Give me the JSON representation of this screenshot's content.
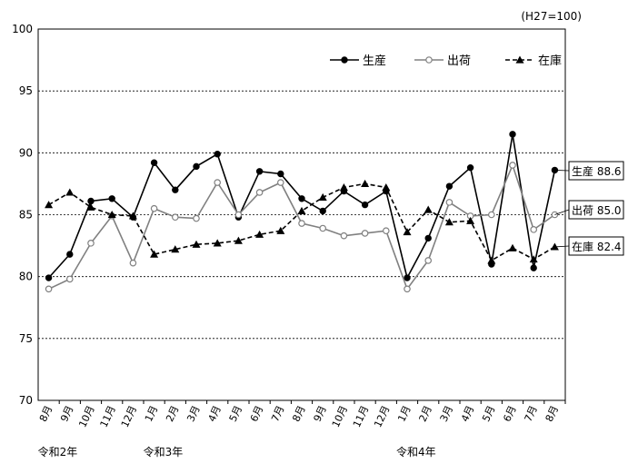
{
  "chart_data": {
    "type": "line",
    "unit_note": "(H27=100)",
    "ylim": [
      70,
      100
    ],
    "yticks": [
      70,
      75,
      80,
      85,
      90,
      95,
      100
    ],
    "grid": true,
    "legend_position": "top-right",
    "x": [
      "8月",
      "9月",
      "10月",
      "11月",
      "12月",
      "1月",
      "2月",
      "3月",
      "4月",
      "5月",
      "6月",
      "7月",
      "8月",
      "9月",
      "10月",
      "11月",
      "12月",
      "1月",
      "2月",
      "3月",
      "4月",
      "5月",
      "6月",
      "7月",
      "8月"
    ],
    "year_labels": [
      {
        "index": 0,
        "label": "令和2年"
      },
      {
        "index": 5,
        "label": "令和3年"
      },
      {
        "index": 17,
        "label": "令和4年"
      }
    ],
    "series": [
      {
        "name": "生産",
        "color": "#000000",
        "marker": "circle-filled",
        "dash": "solid",
        "end_label": "生産 88.6",
        "values": [
          79.9,
          81.8,
          86.1,
          86.3,
          84.8,
          89.2,
          87.0,
          88.9,
          89.9,
          84.8,
          88.5,
          88.3,
          86.3,
          85.3,
          86.9,
          85.8,
          86.9,
          79.9,
          83.1,
          87.3,
          88.8,
          81.0,
          91.5,
          80.7,
          88.6
        ]
      },
      {
        "name": "出荷",
        "color": "#808080",
        "marker": "circle-open",
        "dash": "solid",
        "end_label": "出荷 85.0",
        "values": [
          79.0,
          79.8,
          82.7,
          84.9,
          81.1,
          85.5,
          84.8,
          84.7,
          87.6,
          85.0,
          86.8,
          87.6,
          84.3,
          83.9,
          83.3,
          83.5,
          83.7,
          79.0,
          81.3,
          86.0,
          84.9,
          85.0,
          89.0,
          83.8,
          85.0
        ]
      },
      {
        "name": "在庫",
        "color": "#000000",
        "marker": "triangle-filled",
        "dash": "dashed",
        "end_label": "在庫 82.4",
        "values": [
          85.8,
          86.8,
          85.6,
          85.0,
          84.9,
          81.8,
          82.2,
          82.6,
          82.7,
          82.9,
          83.4,
          83.7,
          85.3,
          86.4,
          87.2,
          87.5,
          87.2,
          83.6,
          85.4,
          84.4,
          84.5,
          81.3,
          82.3,
          81.4,
          82.4
        ]
      }
    ]
  }
}
